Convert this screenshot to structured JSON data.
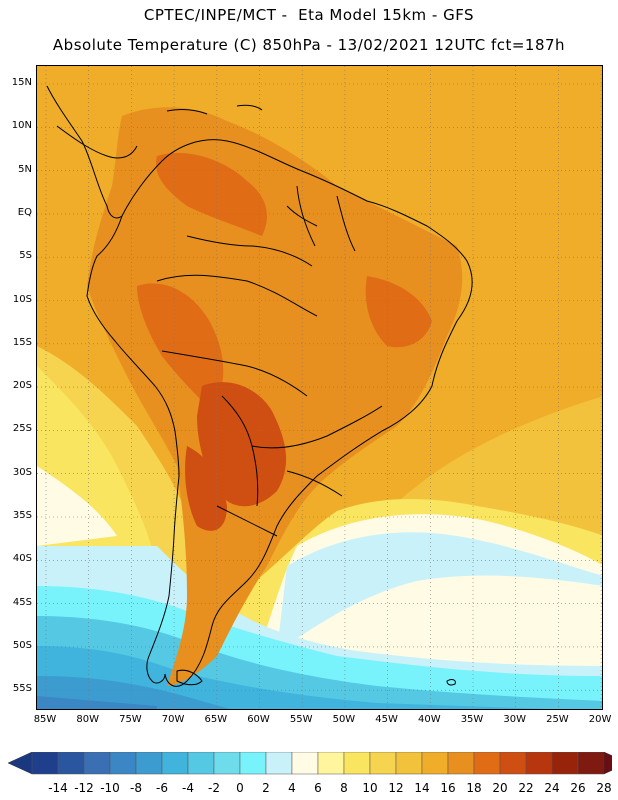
{
  "title_line1": "CPTEC/INPE/MCT -  Eta Model 15km - GFS",
  "title_line2": "Absolute Temperature (C) 850hPa - 13/02/2021 12UTC fct=187h",
  "lat_labels": [
    "15N",
    "10N",
    "5N",
    "EQ",
    "5S",
    "10S",
    "15S",
    "20S",
    "25S",
    "30S",
    "35S",
    "40S",
    "45S",
    "50S",
    "55S"
  ],
  "lon_labels": [
    "85W",
    "80W",
    "75W",
    "70W",
    "65W",
    "60W",
    "55W",
    "50W",
    "45W",
    "40W",
    "35W",
    "30W",
    "25W",
    "20W"
  ],
  "colorbar": {
    "ticks": [
      "-14",
      "-12",
      "-10",
      "-8",
      "-6",
      "-4",
      "-2",
      "0",
      "2",
      "4",
      "6",
      "8",
      "10",
      "12",
      "14",
      "16",
      "18",
      "20",
      "22",
      "24",
      "26",
      "28"
    ],
    "colors": [
      "#1f3f8c",
      "#2a56a0",
      "#3a6fb3",
      "#3b86c4",
      "#3c9ccf",
      "#41b4dd",
      "#55c8e4",
      "#6fdcec",
      "#79f3fb",
      "#c9f1fa",
      "#fffbe4",
      "#fff59d",
      "#f9e55f",
      "#f6d44f",
      "#f2c23d",
      "#efad2a",
      "#e7901f",
      "#e06d16",
      "#cf4f12",
      "#b7360e",
      "#98230b",
      "#7e1a10"
    ],
    "left_arrow_color": "#1a3880",
    "right_arrow_color": "#6b0e14"
  },
  "map_colors": {
    "ocean_warm": "#f2c23d",
    "tropical_ocean": "#efad2a",
    "land_hot": "#e7901f",
    "land_hotter": "#e06d16",
    "land_hottest": "#cf4f12",
    "subtropical_ocean": "#f6d44f",
    "mid_ocean": "#f9e55f",
    "pale": "#fffbe4",
    "cold1": "#c9f1fa",
    "cold2": "#79f3fb",
    "cold3": "#55c8e4",
    "cold4": "#41b4dd",
    "cold5": "#3c9ccf",
    "cold6": "#3b86c4",
    "coastline": "#000000",
    "grid": "#777777"
  }
}
